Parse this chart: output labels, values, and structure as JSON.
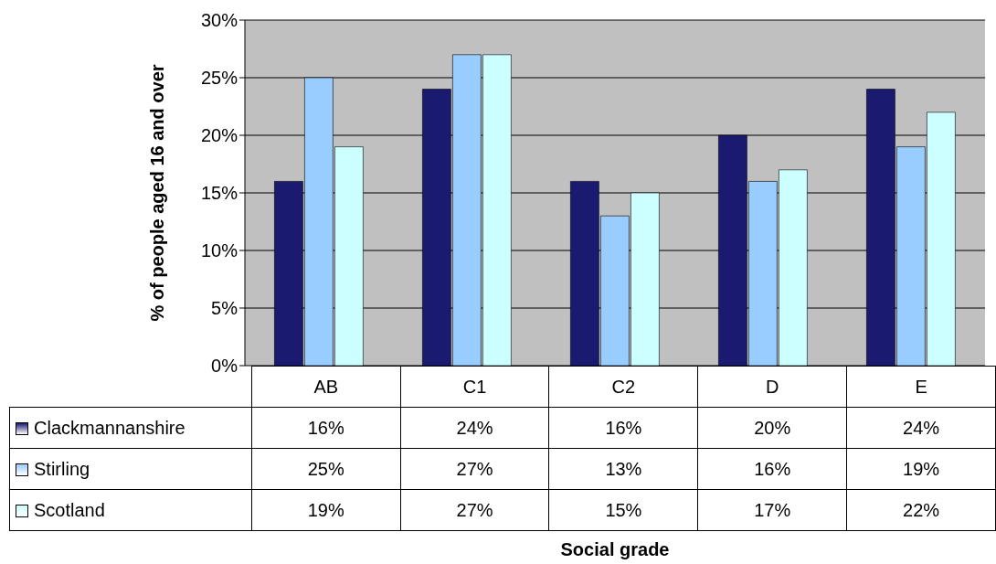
{
  "chart_data": {
    "type": "bar",
    "ylabel": "% of people aged 16 and over",
    "annotations": [
      "Social grade"
    ],
    "categories": [
      "AB",
      "C1",
      "C2",
      "D",
      "E"
    ],
    "series": [
      {
        "name": "Clackmannanshire",
        "color": "#1a1a70",
        "values": [
          16,
          24,
          16,
          20,
          24
        ],
        "value_labels": [
          "16%",
          "24%",
          "16%",
          "20%",
          "24%"
        ]
      },
      {
        "name": "Stirling",
        "color": "#99ccff",
        "values": [
          25,
          27,
          13,
          16,
          19
        ],
        "value_labels": [
          "25%",
          "27%",
          "13%",
          "16%",
          "19%"
        ]
      },
      {
        "name": "Scotland",
        "color": "#ccffff",
        "values": [
          19,
          27,
          15,
          17,
          22
        ],
        "value_labels": [
          "19%",
          "27%",
          "15%",
          "17%",
          "22%"
        ]
      }
    ],
    "ylim": [
      0,
      30
    ],
    "yticks": [
      {
        "value": 0,
        "label": "0%"
      },
      {
        "value": 5,
        "label": "5%"
      },
      {
        "value": 10,
        "label": "10%"
      },
      {
        "value": 15,
        "label": "15%"
      },
      {
        "value": 20,
        "label": "20%"
      },
      {
        "value": 25,
        "label": "25%"
      },
      {
        "value": 30,
        "label": "30%"
      }
    ],
    "grid": "y",
    "legend": "bottom left"
  }
}
